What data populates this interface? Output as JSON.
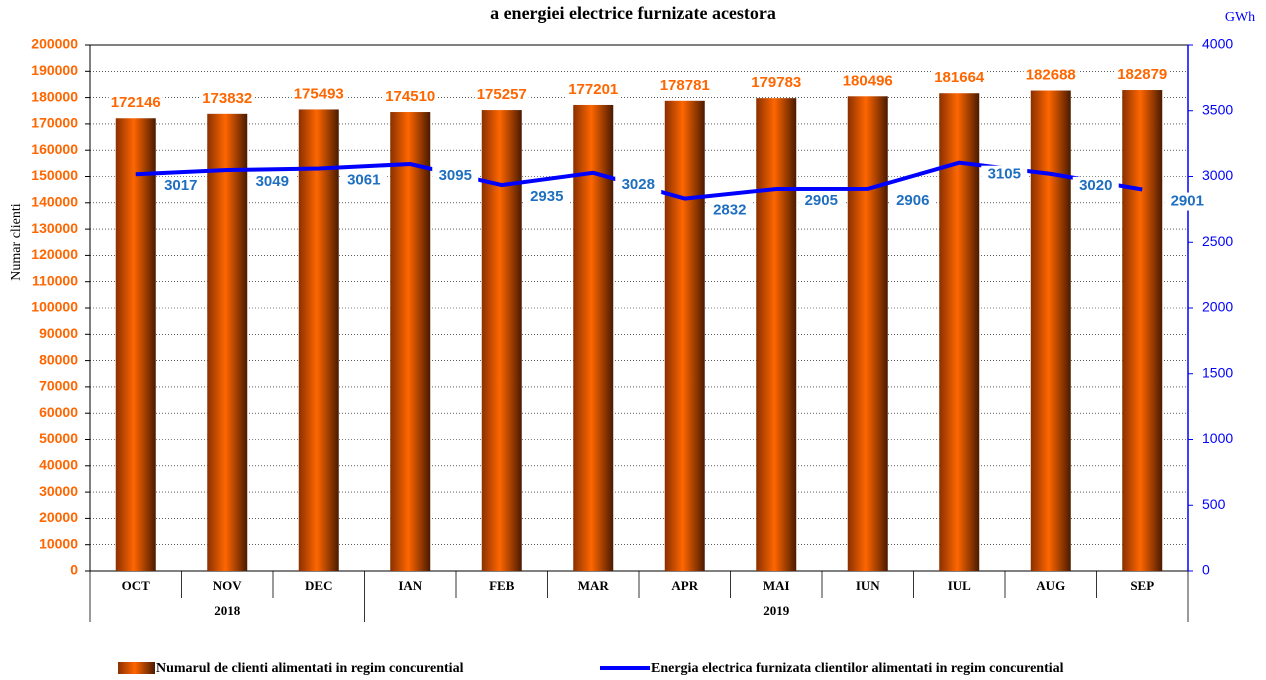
{
  "chart_data": {
    "type": "bar_line",
    "title": "a energiei electrice furnizate acestora",
    "y_label": "Numar clienti",
    "y2_label": "GWh",
    "categories": [
      "OCT",
      "NOV",
      "DEC",
      "IAN",
      "FEB",
      "MAR",
      "APR",
      "MAI",
      "IUN",
      "IUL",
      "AUG",
      "SEP"
    ],
    "group_labels": [
      "2018",
      null,
      null,
      "2019",
      null,
      null,
      null,
      null,
      null,
      null,
      null,
      null
    ],
    "series": [
      {
        "name": "Numarul de clienti alimentati in regim concurential",
        "type": "bar",
        "color": "#ff6600",
        "values": [
          172146,
          173832,
          175493,
          174510,
          175257,
          177201,
          178781,
          179783,
          180496,
          181664,
          182688,
          182879
        ]
      },
      {
        "name": "Energia electrica furnizata clientilor alimentati in regim concurential",
        "type": "line",
        "axis": "y2",
        "color": "#0000ff",
        "values": [
          3017,
          3049,
          3061,
          3095,
          2935,
          3028,
          2832,
          2905,
          2906,
          3105,
          3020,
          2901
        ]
      }
    ],
    "ylim": [
      0,
      200000
    ],
    "yticks": [
      0,
      10000,
      20000,
      30000,
      40000,
      50000,
      60000,
      70000,
      80000,
      90000,
      100000,
      110000,
      120000,
      130000,
      140000,
      150000,
      160000,
      170000,
      180000,
      190000,
      200000
    ],
    "y2lim": [
      0,
      4000
    ],
    "y2ticks": [
      0,
      500,
      1000,
      1500,
      2000,
      2500,
      3000,
      3500,
      4000
    ],
    "grid": true
  }
}
